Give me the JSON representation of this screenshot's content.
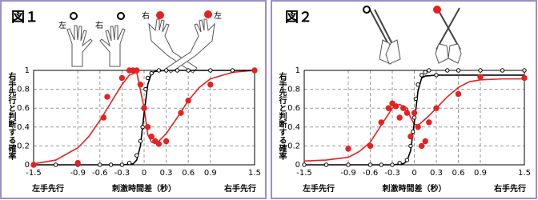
{
  "chart_data": [
    {
      "type": "scatter",
      "title": "図１",
      "annotations": [
        "左",
        "右",
        "右",
        "左"
      ],
      "ylabel": "右手先行と判断する確率",
      "xlabel": "刺激時間差（秒）",
      "xlabel_left": "左手先行",
      "xlabel_right": "右手先行",
      "xlim": [
        -1.5,
        1.5
      ],
      "ylim": [
        0,
        1
      ],
      "xticks": [
        -1.5,
        -0.9,
        -0.6,
        -0.3,
        0,
        0.3,
        0.6,
        0.9,
        1.5
      ],
      "yticks": [
        0,
        0.2,
        0.4,
        0.6,
        0.8,
        1
      ],
      "grid": true,
      "series": [
        {
          "color": "#e82020",
          "line": true,
          "x": [
            -1.5,
            -1.2,
            -0.9,
            -0.75,
            -0.6,
            -0.45,
            -0.3,
            -0.2,
            -0.1,
            0,
            0.05,
            0.1,
            0.15,
            0.2,
            0.3,
            0.45,
            0.6,
            0.75,
            0.9,
            1.2,
            1.5
          ],
          "values": [
            0.01,
            0.05,
            0.18,
            0.3,
            0.47,
            0.66,
            0.85,
            0.95,
            0.98,
            0.6,
            0.32,
            0.24,
            0.23,
            0.25,
            0.33,
            0.5,
            0.68,
            0.82,
            0.91,
            0.98,
            1
          ]
        },
        {
          "color": "#000000",
          "line": true,
          "x": [
            -1.5,
            -0.3,
            -0.15,
            -0.1,
            -0.05,
            0,
            0.05,
            0.1,
            0.15,
            0.3,
            1.5
          ],
          "values": [
            0,
            0,
            0.01,
            0.05,
            0.2,
            0.55,
            0.85,
            0.97,
            0.99,
            1,
            1
          ]
        },
        {
          "color": "#000000",
          "marker": "open",
          "x": [
            -1.5,
            -1.2,
            -0.9,
            -0.6,
            -0.45,
            -0.3,
            -0.2,
            -0.1,
            -0.05,
            -0.02,
            0,
            0.02,
            0.05,
            0.1,
            0.2,
            0.3,
            0.45,
            0.6,
            0.9,
            1.2,
            1.5
          ],
          "values": [
            0,
            0,
            0,
            0,
            0,
            0,
            0.02,
            0.1,
            0.25,
            0.4,
            0.6,
            0.8,
            0.92,
            0.97,
            1,
            1,
            1,
            1,
            1,
            1,
            1
          ]
        },
        {
          "color": "#e82020",
          "marker": "filled",
          "x": [
            -1.5,
            -0.9,
            -0.55,
            -0.5,
            -0.3,
            -0.2,
            -0.15,
            -0.1,
            -0.05,
            0,
            0.05,
            0.1,
            0.15,
            0.2,
            0.3,
            0.5,
            0.6,
            0.9,
            1.5
          ],
          "values": [
            0,
            0.02,
            0.5,
            0.72,
            0.92,
            1,
            1,
            1,
            0.85,
            0.6,
            0.4,
            0.3,
            0.25,
            0.22,
            0.25,
            0.55,
            0.68,
            0.85,
            1
          ]
        }
      ]
    },
    {
      "type": "scatter",
      "title": "図２",
      "ylabel": "右手先行と判断する確率",
      "xlabel": "刺激時間差（秒）",
      "xlabel_left": "左手先行",
      "xlabel_right": "右手先行",
      "xlim": [
        -1.5,
        1.5
      ],
      "ylim": [
        0,
        1
      ],
      "xticks": [
        -1.5,
        -0.9,
        -0.6,
        -0.3,
        0,
        0.3,
        0.6,
        0.9,
        1.5
      ],
      "yticks": [
        0,
        0.2,
        0.4,
        0.6,
        0.8,
        1
      ],
      "grid": true,
      "series": [
        {
          "color": "#e82020",
          "line": true,
          "x": [
            -1.5,
            -1.2,
            -0.9,
            -0.75,
            -0.6,
            -0.45,
            -0.3,
            -0.2,
            -0.1,
            -0.05,
            0,
            0.05,
            0.1,
            0.2,
            0.3,
            0.45,
            0.6,
            0.75,
            0.9,
            1.2,
            1.5
          ],
          "values": [
            0.04,
            0.05,
            0.08,
            0.14,
            0.24,
            0.42,
            0.6,
            0.64,
            0.6,
            0.5,
            0.43,
            0.42,
            0.45,
            0.52,
            0.6,
            0.72,
            0.82,
            0.88,
            0.9,
            0.91,
            0.91
          ]
        },
        {
          "color": "#000000",
          "line": true,
          "x": [
            -1.5,
            -0.3,
            -0.15,
            -0.1,
            -0.05,
            0,
            0.05,
            0.1,
            0.15,
            0.3,
            1.5
          ],
          "values": [
            0,
            0,
            0.01,
            0.04,
            0.15,
            0.45,
            0.78,
            0.92,
            0.94,
            0.95,
            0.95
          ]
        },
        {
          "color": "#000000",
          "marker": "open",
          "x": [
            -1.5,
            -1.2,
            -0.9,
            -0.6,
            -0.45,
            -0.3,
            -0.2,
            -0.1,
            -0.05,
            -0.02,
            0,
            0.02,
            0.05,
            0.1,
            0.15,
            0.2,
            0.3,
            0.45,
            0.6,
            0.9,
            1.2,
            1.5
          ],
          "values": [
            0,
            0,
            0,
            0,
            0,
            0,
            0.02,
            0.05,
            0.2,
            0.35,
            0.5,
            0.7,
            0.85,
            0.95,
            0.98,
            1,
            0.95,
            1,
            1,
            1,
            1,
            1
          ]
        },
        {
          "color": "#e82020",
          "marker": "filled",
          "x": [
            -0.9,
            -0.6,
            -0.45,
            -0.35,
            -0.3,
            -0.25,
            -0.2,
            -0.15,
            -0.1,
            -0.05,
            0,
            0.05,
            0.1,
            0.15,
            0.2,
            0.3,
            0.6,
            0.9,
            1.5
          ],
          "values": [
            0.17,
            0.2,
            0.45,
            0.6,
            0.65,
            0.62,
            0.5,
            0.6,
            0.55,
            0.3,
            0.55,
            0.4,
            0.2,
            0.25,
            0.45,
            0.6,
            0.75,
            0.93,
            0.92
          ]
        }
      ]
    }
  ]
}
